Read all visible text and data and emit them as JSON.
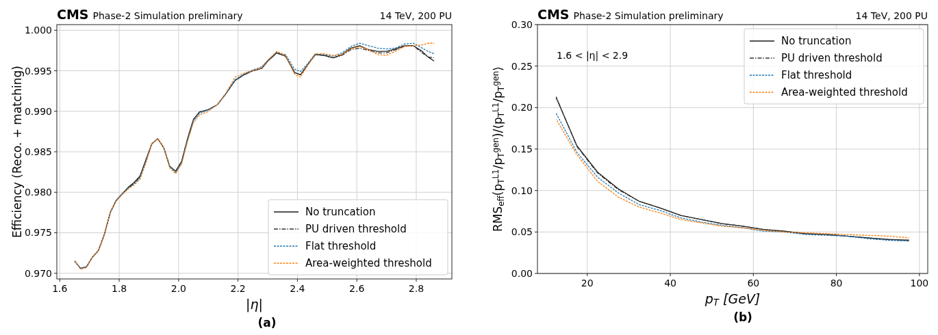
{
  "chart_data": [
    {
      "type": "line",
      "title": "CMS Phase-2 Simulation preliminary",
      "subtitle": "14 TeV, 200 PU",
      "xlabel": "|η|",
      "ylabel": "Efficiency (Reco. + matching)",
      "annotations": [
        "(a)"
      ],
      "x": [
        1.65,
        1.67,
        1.69,
        1.71,
        1.73,
        1.75,
        1.77,
        1.79,
        1.81,
        1.83,
        1.85,
        1.87,
        1.89,
        1.91,
        1.93,
        1.95,
        1.97,
        1.99,
        2.01,
        2.03,
        2.05,
        2.07,
        2.1,
        2.13,
        2.16,
        2.19,
        2.22,
        2.25,
        2.28,
        2.3,
        2.33,
        2.36,
        2.39,
        2.41,
        2.43,
        2.46,
        2.49,
        2.52,
        2.55,
        2.58,
        2.61,
        2.64,
        2.67,
        2.7,
        2.73,
        2.76,
        2.79,
        2.82,
        2.84,
        2.86
      ],
      "series": [
        {
          "name": "No truncation",
          "color": "#1a1a1a",
          "line_style": "solid",
          "values": [
            0.9715,
            0.9706,
            0.9708,
            0.972,
            0.9728,
            0.9748,
            0.9775,
            0.979,
            0.9798,
            0.9806,
            0.9812,
            0.982,
            0.984,
            0.986,
            0.9866,
            0.9855,
            0.9832,
            0.9826,
            0.9838,
            0.9866,
            0.989,
            0.9899,
            0.9902,
            0.9908,
            0.9922,
            0.9938,
            0.9945,
            0.995,
            0.9953,
            0.9962,
            0.9972,
            0.9968,
            0.9948,
            0.9945,
            0.9955,
            0.997,
            0.9969,
            0.9966,
            0.997,
            0.9978,
            0.9981,
            0.9976,
            0.9974,
            0.9974,
            0.9977,
            0.9981,
            0.9981,
            0.9974,
            0.9967,
            0.9962
          ]
        },
        {
          "name": "PU driven threshold",
          "color": "#333333",
          "line_style": "dashdot",
          "values": [
            0.9715,
            0.9706,
            0.9708,
            0.972,
            0.9728,
            0.9748,
            0.9775,
            0.979,
            0.9798,
            0.9805,
            0.9811,
            0.9819,
            0.984,
            0.986,
            0.9866,
            0.9855,
            0.9832,
            0.9826,
            0.9838,
            0.9866,
            0.989,
            0.9899,
            0.9902,
            0.9908,
            0.9922,
            0.9938,
            0.9945,
            0.995,
            0.9953,
            0.9962,
            0.9972,
            0.9968,
            0.9948,
            0.9945,
            0.9955,
            0.997,
            0.9969,
            0.9966,
            0.9969,
            0.9976,
            0.9978,
            0.9975,
            0.9972,
            0.9972,
            0.9976,
            0.998,
            0.9981,
            0.9972,
            0.9967,
            0.9966
          ]
        },
        {
          "name": "Flat threshold",
          "color": "#1f77b4",
          "line_style": "dashed",
          "values": [
            0.9715,
            0.9706,
            0.9708,
            0.972,
            0.9728,
            0.9748,
            0.9775,
            0.979,
            0.9798,
            0.9805,
            0.981,
            0.9818,
            0.9838,
            0.986,
            0.9866,
            0.9855,
            0.9832,
            0.9824,
            0.9836,
            0.9864,
            0.9888,
            0.9897,
            0.9902,
            0.9908,
            0.9922,
            0.9939,
            0.9946,
            0.9951,
            0.9955,
            0.9963,
            0.9973,
            0.997,
            0.9952,
            0.9949,
            0.9957,
            0.9971,
            0.997,
            0.9968,
            0.9972,
            0.998,
            0.9984,
            0.9981,
            0.9978,
            0.9977,
            0.9978,
            0.9983,
            0.9984,
            0.9978,
            0.9974,
            0.9971
          ]
        },
        {
          "name": "Area-weighted threshold",
          "color": "#ff7f0e",
          "line_style": "dashed",
          "values": [
            0.9715,
            0.9705,
            0.9707,
            0.972,
            0.9728,
            0.9748,
            0.9775,
            0.9789,
            0.9797,
            0.9804,
            0.9809,
            0.9816,
            0.9836,
            0.986,
            0.9866,
            0.9855,
            0.983,
            0.9823,
            0.9835,
            0.9863,
            0.9886,
            0.9895,
            0.99,
            0.9908,
            0.9923,
            0.9942,
            0.9947,
            0.995,
            0.9954,
            0.9963,
            0.9974,
            0.9969,
            0.9946,
            0.9942,
            0.9954,
            0.9971,
            0.9971,
            0.9969,
            0.997,
            0.9977,
            0.998,
            0.9976,
            0.997,
            0.9969,
            0.9974,
            0.998,
            0.9981,
            0.9982,
            0.9984,
            0.9984
          ]
        }
      ],
      "xlim": [
        1.59,
        2.92
      ],
      "xticks": [
        1.6,
        1.8,
        {
          "value": 2,
          "label": "2.0"
        },
        2.2,
        2.4,
        2.6,
        2.8
      ],
      "ylim": [
        0.9693,
        1.0007
      ],
      "yticks": [
        {
          "value": 0.97,
          "label": "0.970"
        },
        {
          "value": 0.975,
          "label": "0.975"
        },
        {
          "value": 0.98,
          "label": "0.980"
        },
        {
          "value": 0.985,
          "label": "0.985"
        },
        {
          "value": 0.99,
          "label": "0.990"
        },
        {
          "value": 0.995,
          "label": "0.995"
        },
        {
          "value": 1.0,
          "label": "1.000"
        }
      ],
      "grid": true,
      "legend": "bottom right"
    },
    {
      "type": "line",
      "title": "CMS Phase-2 Simulation preliminary",
      "subtitle": "14 TeV, 200 PU",
      "xlabel": "p$_{T}$ [GeV]",
      "ylabel": "RMS$_{eff}$(p$_{T}$$^{L1}$/p$_{T}$$^{gen}$)/⟨p$_{T}$$^{L1}$/p$_{T}$$^{gen}$⟩",
      "annotations": [
        "1.6 < |η| < 2.9",
        "(b)"
      ],
      "x": [
        12.5,
        17.5,
        22.5,
        27.5,
        32.5,
        37.5,
        42.5,
        47.5,
        52.5,
        57.5,
        62.5,
        67.5,
        72.5,
        77.5,
        82.5,
        87.5,
        92.5,
        97.5
      ],
      "series": [
        {
          "name": "No truncation",
          "color": "#1a1a1a",
          "line_style": "solid",
          "values": [
            0.212,
            0.154,
            0.122,
            0.102,
            0.087,
            0.079,
            0.07,
            0.065,
            0.06,
            0.057,
            0.053,
            0.051,
            0.048,
            0.047,
            0.045,
            0.043,
            0.041,
            0.04
          ]
        },
        {
          "name": "PU driven threshold",
          "color": "#333333",
          "line_style": "dashdot",
          "values": [
            0.213,
            0.153,
            0.121,
            0.101,
            0.087,
            0.079,
            0.07,
            0.065,
            0.06,
            0.057,
            0.053,
            0.051,
            0.048,
            0.047,
            0.045,
            0.043,
            0.041,
            0.04
          ]
        },
        {
          "name": "Flat threshold",
          "color": "#1f77b4",
          "line_style": "dashed",
          "values": [
            0.193,
            0.146,
            0.116,
            0.097,
            0.083,
            0.076,
            0.067,
            0.062,
            0.058,
            0.055,
            0.051,
            0.05,
            0.047,
            0.046,
            0.045,
            0.042,
            0.04,
            0.039
          ]
        },
        {
          "name": "Area-weighted threshold",
          "color": "#ff7f0e",
          "line_style": "dashed",
          "values": [
            0.186,
            0.143,
            0.111,
            0.092,
            0.08,
            0.073,
            0.065,
            0.061,
            0.057,
            0.055,
            0.052,
            0.05,
            0.049,
            0.048,
            0.047,
            0.046,
            0.045,
            0.043
          ]
        }
      ],
      "xlim": [
        8,
        102
      ],
      "xticks": [
        20,
        40,
        60,
        80,
        100
      ],
      "ylim": [
        0,
        0.3
      ],
      "yticks": [
        {
          "value": 0,
          "label": "0.00"
        },
        {
          "value": 0.05,
          "label": "0.05"
        },
        {
          "value": 0.1,
          "label": "0.10"
        },
        {
          "value": 0.15,
          "label": "0.15"
        },
        {
          "value": 0.2,
          "label": "0.20"
        },
        {
          "value": 0.25,
          "label": "0.25"
        },
        {
          "value": 0.3,
          "label": "0.30"
        }
      ],
      "grid": true,
      "legend": "top right"
    }
  ]
}
